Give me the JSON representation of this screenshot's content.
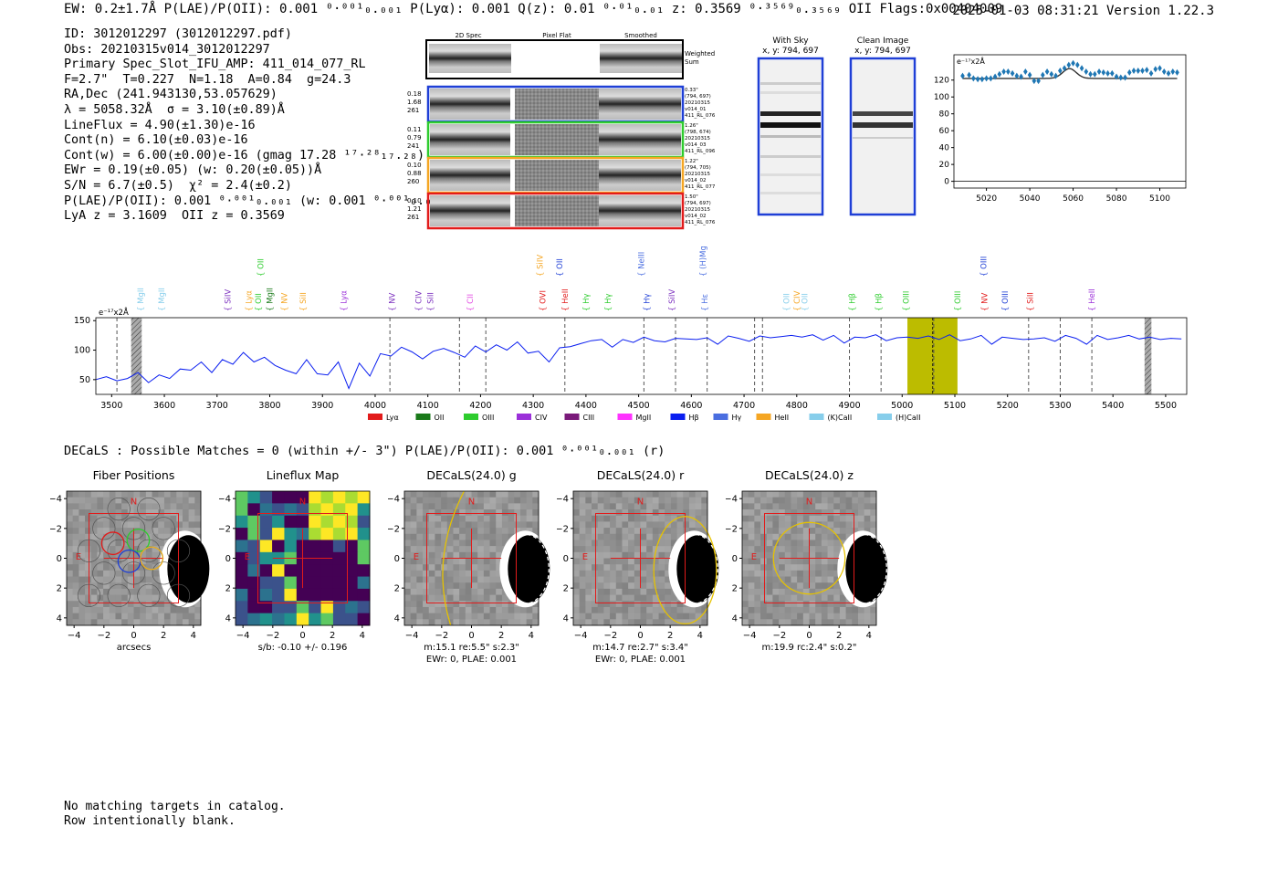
{
  "header": {
    "summary": "EW: 0.2±1.7Å  P(LAE)/P(OII): 0.001 ⁰·⁰⁰¹₀.₀₀₁  P(Lyα): 0.001  Q(z): 0.01 ⁰·⁰¹₀.₀₁  z: 0.3569 ⁰·³⁵⁶⁹₀.₃₅₆₉ OII   Flags:0x00404009",
    "timestamp_version": "2025-01-03 08:31:21  Version 1.22.3"
  },
  "info_lines": [
    "ID: 3012012297 (3012012297.pdf)",
    "Obs: 20210315v014_3012012297",
    "Primary Spec_Slot_IFU_AMP: 411_014_077_RL",
    "F=2.7\"  T=0.227  N=1.18  A=0.84  g=24.3",
    "RA,Dec (241.943130,53.057629)",
    "λ = 5058.32Å  σ = 3.10(±0.89)Å",
    "LineFlux = 4.90(±1.30)e-16",
    "Cont(n) = 6.10(±0.03)e-16",
    "Cont(w) = 6.00(±0.00)e-16 (gmag 17.28 ¹⁷·²⁸₁₇.₂₈)",
    "EWr = 0.19(±0.05) (w: 0.20(±0.05))Å",
    "S/N = 6.7(±0.5)  χ² = 2.4(±0.2)",
    "P(LAE)/P(OII): 0.001 ⁰·⁰⁰¹₀.₀₀₁ (w: 0.001 ⁰·⁰⁰¹₀.₀₀₁)",
    "LyA z = 3.1609  OII z = 0.3569"
  ],
  "cutouts": {
    "col_labels": [
      "2D Spec",
      "Pixel Flat",
      "Smoothed"
    ],
    "weighted_label": "Weighted\nSum",
    "rows": [
      {
        "left": [
          "0.18",
          "1.68",
          "261"
        ],
        "right": [
          "0.33\"",
          "(794, 697)",
          "20210315",
          "v014_01",
          "411_RL_076"
        ],
        "color": "#1f3fd6"
      },
      {
        "left": [
          "0.11",
          "0.79",
          "241"
        ],
        "right": [
          "1.26\"",
          "(798, 674)",
          "20210315",
          "v014_03",
          "411_RL_096"
        ],
        "color": "#2ecc2e"
      },
      {
        "left": [
          "0.10",
          "0.88",
          "260"
        ],
        "right": [
          "1.22\"",
          "(794, 705)",
          "20210315",
          "v014_02",
          "411_RL_077"
        ],
        "color": "#f5a623"
      },
      {
        "left": [
          "0.10",
          "1.21",
          "261"
        ],
        "right": [
          "1.50\"",
          "(794, 697)",
          "20210315",
          "v014_02",
          "411_RL_076"
        ],
        "color": "#e21b1b"
      }
    ],
    "with_sky": {
      "title": "With Sky",
      "coords": "x, y: 794, 697"
    },
    "clean": {
      "title": "Clean Image",
      "coords": "x, y: 794, 697"
    }
  },
  "chart_data": [
    {
      "type": "scatter",
      "title": "",
      "unit_label": "e⁻¹⁷x2Å",
      "xlim": [
        5005,
        5112
      ],
      "ylim": [
        -8,
        150
      ],
      "x_ticks": [
        5020,
        5040,
        5060,
        5080,
        5100
      ],
      "y_ticks": [
        0,
        20,
        40,
        60,
        80,
        100,
        120
      ],
      "points_x": [
        5009,
        5012,
        5014,
        5016,
        5018,
        5020,
        5022,
        5024,
        5026,
        5028,
        5030,
        5032,
        5034,
        5036,
        5038,
        5040,
        5042,
        5044,
        5046,
        5048,
        5050,
        5052,
        5054,
        5056,
        5058,
        5060,
        5062,
        5064,
        5066,
        5068,
        5070,
        5072,
        5074,
        5076,
        5078,
        5080,
        5082,
        5084,
        5086,
        5088,
        5090,
        5092,
        5094,
        5096,
        5098,
        5100,
        5102,
        5104,
        5106,
        5108
      ],
      "points_y": [
        125,
        126,
        122,
        121,
        121,
        122,
        122,
        124,
        127,
        130,
        130,
        128,
        125,
        124,
        130,
        126,
        119,
        119,
        126,
        130,
        127,
        125,
        131,
        134,
        138,
        140,
        138,
        134,
        130,
        127,
        127,
        130,
        129,
        128,
        128,
        124,
        123,
        123,
        129,
        131,
        131,
        131,
        132,
        128,
        133,
        134,
        130,
        128,
        130,
        129
      ],
      "fit": {
        "continuum": 122,
        "center": 5058.3,
        "sigma": 3.1,
        "amplitude": 11.6
      }
    },
    {
      "type": "line",
      "title": "",
      "unit_label": "e⁻¹⁷x2Å",
      "xlim": [
        3470,
        5540
      ],
      "ylim": [
        25,
        155
      ],
      "x_ticks": [
        3500,
        3600,
        3700,
        3800,
        3900,
        4000,
        4100,
        4200,
        4300,
        4400,
        4500,
        4600,
        4700,
        4800,
        4900,
        5000,
        5100,
        5200,
        5300,
        5400,
        5500
      ],
      "y_ticks": [
        50,
        100,
        150
      ],
      "spectrum_x": [
        3470,
        3490,
        3510,
        3530,
        3550,
        3570,
        3590,
        3610,
        3630,
        3650,
        3670,
        3690,
        3710,
        3730,
        3750,
        3770,
        3790,
        3810,
        3830,
        3850,
        3870,
        3890,
        3910,
        3930,
        3950,
        3970,
        3990,
        4010,
        4030,
        4050,
        4070,
        4090,
        4110,
        4130,
        4150,
        4170,
        4190,
        4210,
        4230,
        4250,
        4270,
        4290,
        4310,
        4330,
        4350,
        4370,
        4390,
        4410,
        4430,
        4450,
        4470,
        4490,
        4510,
        4530,
        4550,
        4570,
        4590,
        4610,
        4630,
        4650,
        4670,
        4690,
        4710,
        4730,
        4750,
        4770,
        4790,
        4810,
        4830,
        4850,
        4870,
        4890,
        4910,
        4930,
        4950,
        4970,
        4990,
        5010,
        5030,
        5050,
        5070,
        5090,
        5110,
        5130,
        5150,
        5170,
        5190,
        5210,
        5230,
        5250,
        5270,
        5290,
        5310,
        5330,
        5350,
        5370,
        5390,
        5410,
        5430,
        5450,
        5470,
        5490,
        5510,
        5530
      ],
      "spectrum_y": [
        50,
        55,
        48,
        52,
        62,
        45,
        58,
        52,
        68,
        66,
        80,
        62,
        84,
        76,
        96,
        80,
        88,
        74,
        66,
        60,
        84,
        60,
        58,
        80,
        35,
        78,
        56,
        94,
        90,
        105,
        97,
        85,
        98,
        103,
        96,
        88,
        107,
        97,
        109,
        100,
        114,
        95,
        98,
        80,
        104,
        106,
        111,
        116,
        118,
        105,
        118,
        113,
        122,
        116,
        114,
        120,
        119,
        118,
        121,
        110,
        124,
        120,
        115,
        124,
        121,
        123,
        125,
        122,
        126,
        117,
        125,
        112,
        122,
        121,
        126,
        116,
        121,
        122,
        120,
        124,
        118,
        126,
        116,
        119,
        125,
        110,
        122,
        120,
        118,
        119,
        121,
        115,
        125,
        120,
        110,
        125,
        118,
        121,
        125,
        119,
        122,
        118,
        120,
        119
      ],
      "reference_lines": [
        3510,
        4028,
        4160,
        4210,
        4360,
        4510,
        4570,
        4630,
        4720,
        4735,
        4900,
        4960,
        5060,
        5240,
        5300,
        5360
      ],
      "lines": [
        {
          "name": "MgII",
          "x": 3555,
          "color": "#87ceeb"
        },
        {
          "name": "MgII",
          "x": 3595,
          "color": "#87ceeb"
        },
        {
          "name": "SiIV",
          "x": 3720,
          "color": "#7b2fbe"
        },
        {
          "name": "Lyα",
          "x": 3760,
          "color": "#f5a623"
        },
        {
          "name": "OII",
          "x": 3778,
          "color": "#2ecc2e"
        },
        {
          "name": "MgII",
          "x": 3800,
          "color": "#1a7a1a"
        },
        {
          "name": "NV",
          "x": 3828,
          "color": "#f5a623"
        },
        {
          "name": "SiII",
          "x": 3863,
          "color": "#f5a623"
        },
        {
          "name": "Lyα",
          "x": 3940,
          "color": "#9b30d9"
        },
        {
          "name": "NV",
          "x": 4032,
          "color": "#7b2fbe"
        },
        {
          "name": "CIV",
          "x": 4082,
          "color": "#7b2fbe"
        },
        {
          "name": "SiII",
          "x": 4105,
          "color": "#7b2fbe"
        },
        {
          "name": "CII",
          "x": 4180,
          "color": "#e24be2"
        },
        {
          "name": "OVI",
          "x": 4318,
          "color": "#e21b1b"
        },
        {
          "name": "HeII",
          "x": 4360,
          "color": "#e21b1b"
        },
        {
          "name": "Hγ",
          "x": 4400,
          "color": "#2ecc2e"
        },
        {
          "name": "Hγ",
          "x": 4442,
          "color": "#2ecc2e"
        },
        {
          "name": "Hγ",
          "x": 4515,
          "color": "#1f3fd6"
        },
        {
          "name": "SiIV",
          "x": 4563,
          "color": "#7b2fbe"
        },
        {
          "name": "Hε",
          "x": 4625,
          "color": "#4a6ee0"
        },
        {
          "name": "OII",
          "x": 4780,
          "color": "#87ceeb"
        },
        {
          "name": "CIV",
          "x": 4800,
          "color": "#f5a623"
        },
        {
          "name": "OII",
          "x": 4815,
          "color": "#87ceeb"
        },
        {
          "name": "Hβ",
          "x": 4905,
          "color": "#2ecc2e"
        },
        {
          "name": "Hβ",
          "x": 4955,
          "color": "#2ecc2e"
        },
        {
          "name": "OIII",
          "x": 5007,
          "color": "#2ecc2e"
        },
        {
          "name": "OIII",
          "x": 5105,
          "color": "#2ecc2e"
        },
        {
          "name": "NV",
          "x": 5156,
          "color": "#e21b1b"
        },
        {
          "name": "OIII",
          "x": 5195,
          "color": "#1f3fd6"
        },
        {
          "name": "SiII",
          "x": 5243,
          "color": "#e21b1b"
        },
        {
          "name": "HeII",
          "x": 5360,
          "color": "#9b30d9"
        }
      ],
      "upper_lines": [
        {
          "name": "OII",
          "x": 3783,
          "color": "#2ecc2e"
        },
        {
          "name": "SiIV",
          "x": 4313,
          "color": "#f5a623"
        },
        {
          "name": "OII",
          "x": 4350,
          "color": "#1f3fd6"
        },
        {
          "name": "NeIII",
          "x": 4505,
          "color": "#4a6ee0"
        },
        {
          "name": "(H)MgII",
          "x": 4622,
          "color": "#4a6ee0"
        },
        {
          "name": "OIII",
          "x": 5155,
          "color": "#1f3fd6"
        }
      ],
      "highlight_band": [
        5010,
        5105
      ],
      "masked_bands": [
        [
          3537,
          3557
        ],
        [
          5460,
          5473
        ]
      ],
      "legend": [
        {
          "label": "Lyα",
          "color": "#e21b1b"
        },
        {
          "label": "OII",
          "color": "#1a7a1a"
        },
        {
          "label": "OIII",
          "color": "#2ecc2e"
        },
        {
          "label": "CIV",
          "color": "#9b30d9"
        },
        {
          "label": "CIII",
          "color": "#7a1a7a"
        },
        {
          "label": "MgII",
          "color": "#ff33ff"
        },
        {
          "label": "Hβ",
          "color": "#0a1ef0"
        },
        {
          "label": "Hγ",
          "color": "#4a6ee0"
        },
        {
          "label": "HeII",
          "color": "#f5a623"
        },
        {
          "label": "(K)CaII",
          "color": "#87ceeb"
        },
        {
          "label": "(H)CaII",
          "color": "#87ceeb"
        }
      ]
    }
  ],
  "decals_line": "DECaLS : Possible Matches = 0 (within +/- 3\")  P(LAE)/P(OII): 0.001 ⁰·⁰⁰¹₀.₀₀₁ (r)",
  "thumbs": [
    {
      "title": "Fiber Positions",
      "caption": [
        "arcsecs"
      ],
      "kind": "fibers"
    },
    {
      "title": "Lineflux Map",
      "caption": [
        "s/b: -0.10 +/- 0.196"
      ],
      "kind": "lineflux"
    },
    {
      "title": "DECaLS(24.0) g",
      "caption": [
        "m:15.1  re:5.5\"  s:2.3\"",
        "EWr: 0, PLAE: 0.001"
      ],
      "kind": "g"
    },
    {
      "title": "DECaLS(24.0) r",
      "caption": [
        "m:14.7  re:2.7\"  s:3.4\"",
        "EWr: 0, PLAE: 0.001"
      ],
      "kind": "r"
    },
    {
      "title": "DECaLS(24.0) z",
      "caption": [
        "m:19.9 rc:2.4\"  s:0.2\""
      ],
      "kind": "z"
    }
  ],
  "thumb_ticks": [
    "−4",
    "−2",
    "0",
    "2",
    "4"
  ],
  "thumb_marks": {
    "north": "N",
    "east": "E"
  },
  "footer": [
    "No matching targets in catalog.",
    "Row intentionally blank."
  ]
}
